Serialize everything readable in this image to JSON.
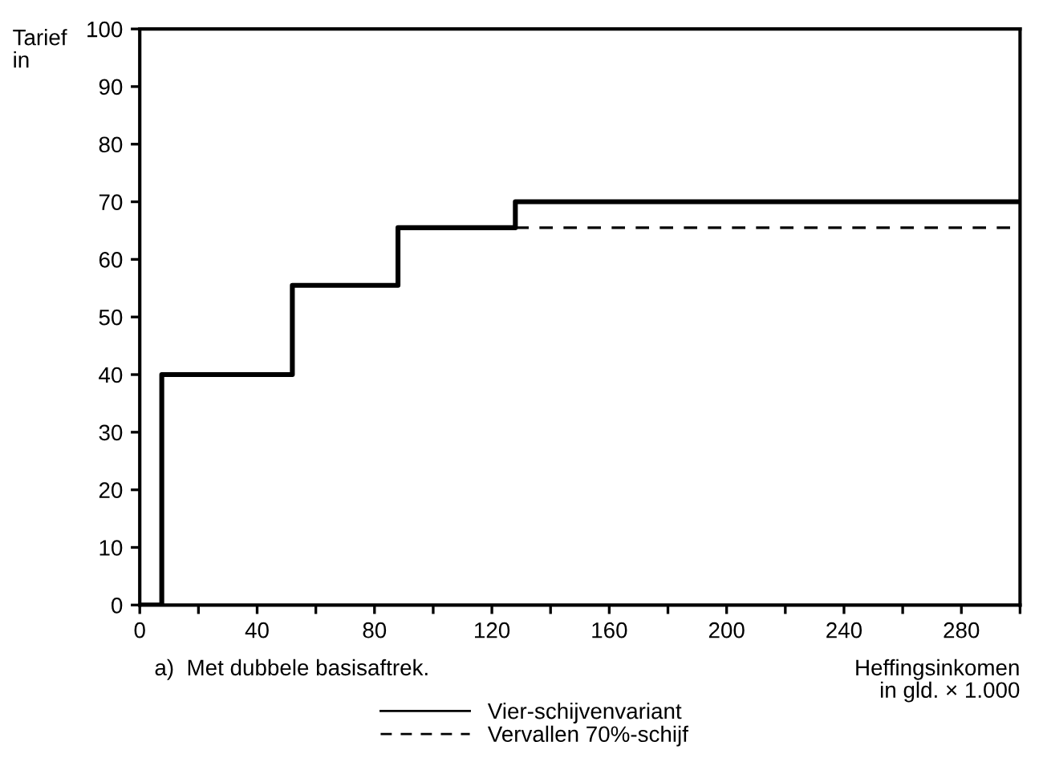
{
  "chart_data": {
    "type": "step",
    "ylabel": "Tarief\nin",
    "xlabel": "Heffingsinkomen\nin gld. × 1.000",
    "annotations": [
      "a)  Met dubbele basisaftrek."
    ],
    "series": [
      {
        "name": "Vier-schijvenvariant",
        "color": "#000000",
        "line_style": "solid",
        "x": [
          0,
          7.5,
          52,
          88,
          128,
          300
        ],
        "values": [
          0,
          40,
          55.5,
          65.5,
          70,
          70
        ]
      },
      {
        "name": "Vervallen 70%-schijf",
        "color": "#000000",
        "line_style": "dashed",
        "x": [
          128,
          300
        ],
        "values": [
          65.5,
          65.5
        ]
      }
    ],
    "xlim": [
      0,
      300
    ],
    "xticks": [
      0,
      {
        "value": 20,
        "label": null
      },
      40,
      {
        "value": 60,
        "label": null
      },
      80,
      {
        "value": 100,
        "label": null
      },
      120,
      {
        "value": 140,
        "label": null
      },
      160,
      {
        "value": 180,
        "label": null
      },
      200,
      {
        "value": 220,
        "label": null
      },
      240,
      {
        "value": 260,
        "label": null
      },
      280,
      {
        "value": 300,
        "label": null
      }
    ],
    "ylim": [
      0,
      100
    ],
    "yticks": [
      0,
      10,
      20,
      30,
      40,
      50,
      60,
      70,
      80,
      90,
      100
    ],
    "grid": false,
    "legend": "bottom left"
  }
}
